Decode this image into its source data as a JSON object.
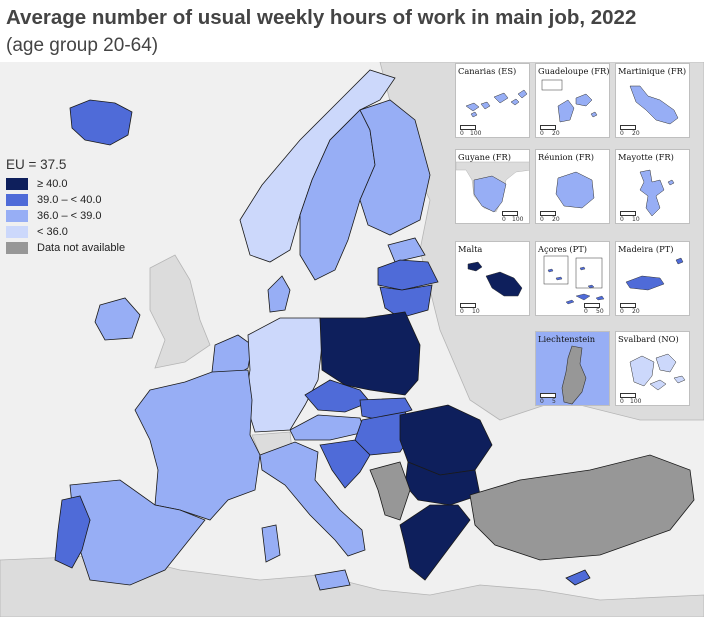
{
  "title": "Average number of usual weekly hours of work in main job, 2022",
  "subtitle": "(age group 20-64)",
  "legend": {
    "eu_label": "EU = 37.5",
    "classes": [
      {
        "label": "≥ 40.0",
        "color": "#0e1f5c"
      },
      {
        "label": "39.0 – < 40.0",
        "color": "#4f6bd8"
      },
      {
        "label": "36.0 – < 39.0",
        "color": "#97aef5"
      },
      {
        "label": "< 36.0",
        "color": "#ccd8fb"
      },
      {
        "label": "Data not available",
        "color": "#979797"
      }
    ]
  },
  "colors": {
    "sea": "#f0f0f0",
    "non_eu_land": "#dcdcdc",
    "border": "#1a1a1a"
  },
  "insets": [
    {
      "label": "Canarias (ES)",
      "scale": [
        "0",
        "100"
      ]
    },
    {
      "label": "Guadeloupe (FR)",
      "scale": [
        "0",
        "20"
      ]
    },
    {
      "label": "Martinique (FR)",
      "scale": [
        "0",
        "20"
      ]
    },
    {
      "label": "Guyane (FR)",
      "scale": [
        "0",
        "100"
      ]
    },
    {
      "label": "Réunion (FR)",
      "scale": [
        "0",
        "20"
      ]
    },
    {
      "label": "Mayotte (FR)",
      "scale": [
        "0",
        "10"
      ]
    },
    {
      "label": "Malta",
      "scale": [
        "0",
        "10"
      ]
    },
    {
      "label": "Açores (PT)",
      "scale": [
        "0",
        "50"
      ]
    },
    {
      "label": "Madeira (PT)",
      "scale": [
        "0",
        "20"
      ]
    },
    {
      "label": "Liechtenstein",
      "scale": [
        "0",
        "5"
      ]
    },
    {
      "label": "Svalbard (NO)",
      "scale": [
        "0",
        "100"
      ]
    }
  ]
}
